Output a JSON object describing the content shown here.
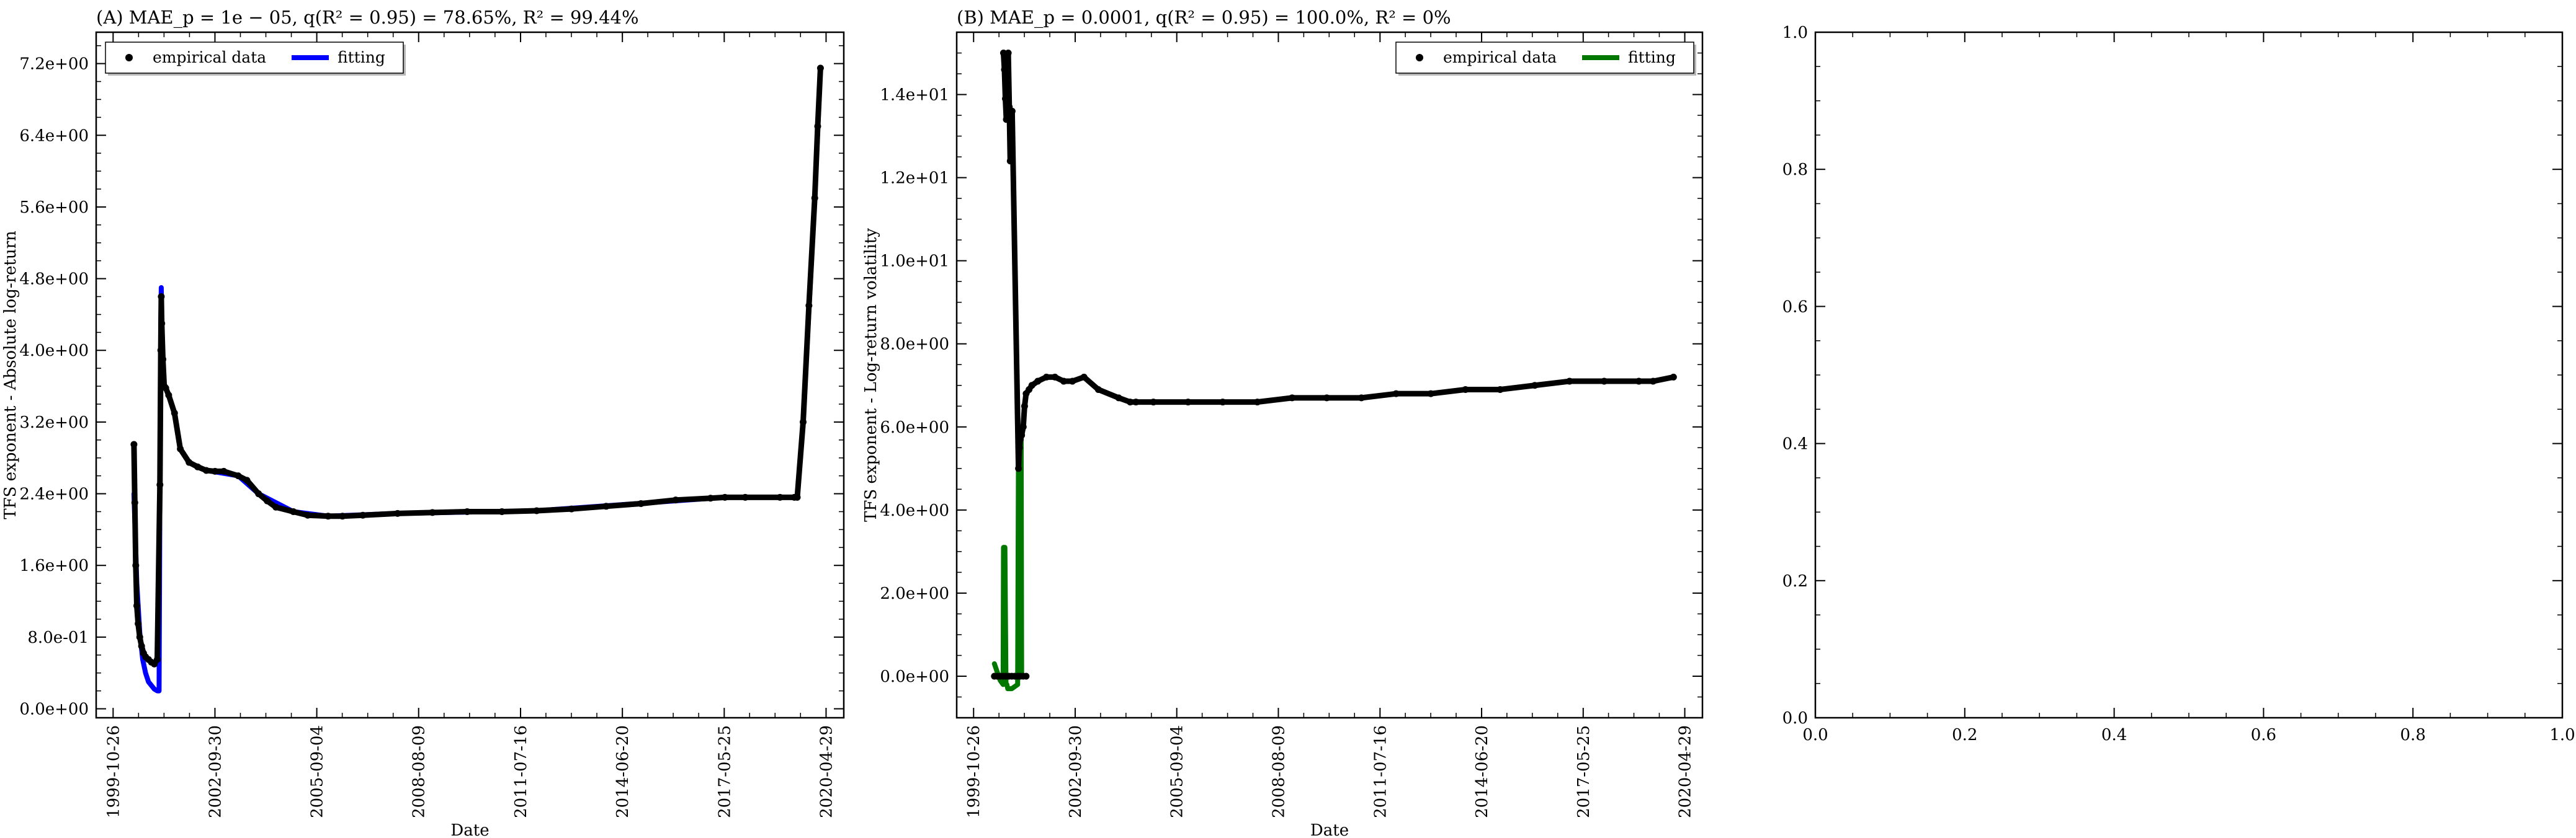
{
  "chart_data": [
    {
      "type": "scatter",
      "title": "(A) MAE_p = 1e − 05, q(R² = 0.95) = 78.65%, R² = 99.44%",
      "xlabel": "Date",
      "ylabel": "TFS exponent - Absolute log-return",
      "x_ticks": [
        "1999-10-26",
        "2002-09-30",
        "2005-09-04",
        "2008-08-09",
        "2011-07-16",
        "2014-06-20",
        "2017-05-25",
        "2020-04-29"
      ],
      "y_ticks": [
        "0.0e+00",
        "8.0e-01",
        "1.6e+00",
        "2.4e+00",
        "3.2e+00",
        "4.0e+00",
        "4.8e+00",
        "5.6e+00",
        "6.4e+00",
        "7.2e+00"
      ],
      "xlim": [
        "1999-05-01",
        "2020-11-01"
      ],
      "ylim": [
        -0.1,
        7.55
      ],
      "legend": {
        "position": "top-left",
        "entries": [
          "empirical data",
          "fitting"
        ]
      },
      "colors": {
        "empirical": "#000000",
        "fitting": "#0000ff"
      },
      "series": [
        {
          "name": "empirical data",
          "kind": "points",
          "x": [
            "2000-06-01",
            "2000-06-10",
            "2000-06-20",
            "2000-07-01",
            "2000-07-15",
            "2000-08-01",
            "2000-08-20",
            "2000-09-10",
            "2000-10-01",
            "2000-11-01",
            "2000-12-01",
            "2001-01-01",
            "2001-02-01",
            "2001-03-01",
            "2001-03-10",
            "2001-03-15",
            "2001-03-20",
            "2001-04-01",
            "2001-04-15",
            "2001-05-01",
            "2001-06-01",
            "2001-08-01",
            "2001-10-01",
            "2002-01-01",
            "2002-04-01",
            "2002-07-01",
            "2002-10-01",
            "2003-01-01",
            "2003-06-01",
            "2003-09-01",
            "2004-01-01",
            "2004-04-01",
            "2004-07-01",
            "2005-01-01",
            "2005-06-01",
            "2006-01-01",
            "2006-06-01",
            "2007-01-01",
            "2008-01-01",
            "2009-01-01",
            "2010-01-01",
            "2011-01-01",
            "2012-01-01",
            "2013-01-01",
            "2014-01-01",
            "2015-01-01",
            "2016-01-01",
            "2017-01-01",
            "2017-06-01",
            "2018-01-01",
            "2019-01-01",
            "2019-06-01",
            "2019-07-01",
            "2019-09-01",
            "2019-11-01",
            "2020-01-01",
            "2020-02-01",
            "2020-03-01"
          ],
          "y": [
            2.95,
            2.3,
            1.6,
            1.15,
            0.95,
            0.8,
            0.7,
            0.62,
            0.58,
            0.55,
            0.52,
            0.5,
            0.55,
            2.5,
            4.0,
            4.6,
            4.3,
            3.9,
            3.6,
            3.58,
            3.5,
            3.3,
            2.9,
            2.75,
            2.7,
            2.66,
            2.65,
            2.65,
            2.6,
            2.55,
            2.4,
            2.32,
            2.25,
            2.2,
            2.16,
            2.15,
            2.15,
            2.16,
            2.18,
            2.19,
            2.2,
            2.2,
            2.21,
            2.23,
            2.26,
            2.29,
            2.33,
            2.35,
            2.36,
            2.36,
            2.36,
            2.36,
            2.36,
            3.2,
            4.5,
            5.7,
            6.5,
            7.15
          ]
        },
        {
          "name": "fitting",
          "kind": "line",
          "x": [
            "2000-06-01",
            "2000-07-01",
            "2000-08-01",
            "2000-09-01",
            "2000-10-01",
            "2000-11-01",
            "2001-01-01",
            "2001-02-01",
            "2001-02-20",
            "2001-03-01",
            "2001-03-10",
            "2001-03-15",
            "2001-03-20",
            "2001-04-01",
            "2001-04-15",
            "2001-05-01",
            "2001-06-01",
            "2001-08-01",
            "2001-10-01",
            "2002-01-01",
            "2002-07-01",
            "2003-06-01",
            "2004-01-01",
            "2005-01-01",
            "2006-01-01",
            "2008-01-01",
            "2012-01-01",
            "2017-06-01",
            "2019-07-01",
            "2019-09-01",
            "2020-01-01",
            "2020-03-01"
          ],
          "y": [
            2.4,
            1.4,
            0.85,
            0.55,
            0.4,
            0.3,
            0.22,
            0.2,
            0.2,
            2.5,
            4.3,
            4.7,
            4.3,
            3.9,
            3.6,
            3.58,
            3.5,
            3.3,
            2.9,
            2.75,
            2.66,
            2.6,
            2.4,
            2.2,
            2.15,
            2.18,
            2.21,
            2.36,
            2.36,
            3.2,
            5.7,
            7.15
          ]
        }
      ]
    },
    {
      "type": "scatter",
      "title": "(B) MAE_p = 0.0001, q(R² = 0.95) = 100.0%, R² = 0%",
      "xlabel": "Date",
      "ylabel": "TFS exponent - Log-return volatility",
      "x_ticks": [
        "1999-10-26",
        "2002-09-30",
        "2005-09-04",
        "2008-08-09",
        "2011-07-16",
        "2014-06-20",
        "2017-05-25",
        "2020-04-29"
      ],
      "y_ticks": [
        "0.0e+00",
        "2.0e+00",
        "4.0e+00",
        "6.0e+00",
        "8.0e+00",
        "1.0e+01",
        "1.2e+01",
        "1.4e+01"
      ],
      "xlim": [
        "1999-05-01",
        "2020-11-01"
      ],
      "ylim": [
        -1.0,
        15.5
      ],
      "legend": {
        "position": "top-right",
        "entries": [
          "empirical data",
          "fitting"
        ]
      },
      "colors": {
        "empirical": "#000000",
        "fitting": "#007800"
      },
      "series": [
        {
          "name": "empirical data",
          "kind": "points",
          "x": [
            "2000-06-01",
            "2000-07-01",
            "2000-08-01",
            "2000-09-01",
            "2000-10-01",
            "2000-11-01",
            "2000-12-01",
            "2001-01-01",
            "2001-02-01",
            "2001-03-01",
            "2001-04-01",
            "2001-05-01",
            "2000-09-05",
            "2000-09-15",
            "2000-09-25",
            "2000-10-05",
            "2000-10-15",
            "2000-10-25",
            "2000-11-05",
            "2000-11-15",
            "2000-11-25",
            "2000-12-05",
            "2001-02-10",
            "2001-02-20",
            "2001-03-01",
            "2001-03-15",
            "2001-04-01",
            "2001-04-15",
            "2001-05-01",
            "2001-06-01",
            "2001-07-01",
            "2001-09-01",
            "2001-12-01",
            "2002-03-01",
            "2002-06-01",
            "2002-09-01",
            "2003-01-01",
            "2003-06-01",
            "2004-01-01",
            "2004-05-01",
            "2004-07-01",
            "2005-01-01",
            "2006-01-01",
            "2007-01-01",
            "2008-01-01",
            "2009-01-01",
            "2010-01-01",
            "2011-01-01",
            "2012-01-01",
            "2013-01-01",
            "2014-01-01",
            "2015-01-01",
            "2016-01-01",
            "2017-01-01",
            "2018-01-01",
            "2019-01-01",
            "2019-06-01",
            "2020-01-01"
          ],
          "y": [
            0.0,
            0.0,
            0.0,
            0.0,
            0.0,
            0.0,
            0.0,
            0.0,
            0.0,
            0.0,
            0.0,
            0.0,
            15.0,
            14.6,
            13.9,
            13.4,
            14.3,
            15.0,
            13.7,
            12.4,
            12.7,
            13.6,
            5.0,
            5.5,
            5.7,
            5.8,
            6.0,
            6.5,
            6.8,
            6.9,
            7.0,
            7.1,
            7.2,
            7.2,
            7.1,
            7.1,
            7.2,
            6.9,
            6.7,
            6.6,
            6.6,
            6.6,
            6.6,
            6.6,
            6.6,
            6.7,
            6.7,
            6.7,
            6.8,
            6.8,
            6.9,
            6.9,
            7.0,
            7.1,
            7.1,
            7.1,
            7.1,
            7.2
          ]
        },
        {
          "name": "fitting",
          "kind": "line",
          "x": [
            "2000-06-01",
            "2000-07-01",
            "2000-08-01",
            "2000-09-01",
            "2000-09-05",
            "2000-09-20",
            "2000-10-01",
            "2000-10-10",
            "2000-10-20",
            "2000-11-01",
            "2000-12-01",
            "2001-01-01",
            "2001-02-01",
            "2001-02-10",
            "2001-02-20",
            "2001-03-01",
            "2001-03-10",
            "2001-03-15"
          ],
          "y": [
            0.3,
            0.1,
            -0.1,
            -0.2,
            3.1,
            3.1,
            -0.2,
            -0.2,
            -0.3,
            -0.3,
            -0.3,
            -0.25,
            -0.2,
            5.5,
            5.7,
            5.8,
            5.8,
            0.0
          ]
        }
      ]
    },
    {
      "type": "scatter",
      "title": "",
      "xlabel": "",
      "ylabel": "",
      "x_ticks": [
        "0.0",
        "0.2",
        "0.4",
        "0.6",
        "0.8",
        "1.0"
      ],
      "y_ticks": [
        "0.0",
        "0.2",
        "0.4",
        "0.6",
        "0.8",
        "1.0"
      ],
      "xlim": [
        0,
        1
      ],
      "ylim": [
        0,
        1
      ],
      "series": []
    }
  ]
}
